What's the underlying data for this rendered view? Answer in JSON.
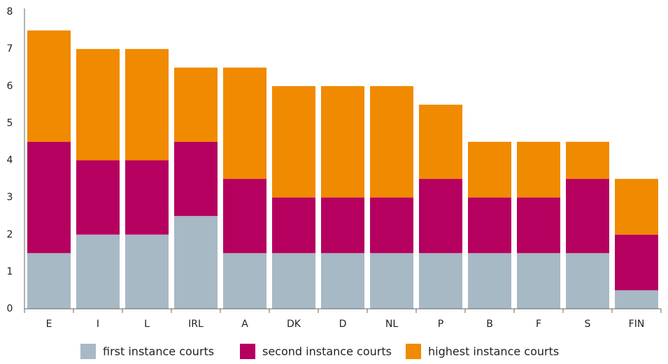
{
  "chart_data": {
    "type": "stacked_bar",
    "categories": [
      "E",
      "I",
      "L",
      "IRL",
      "A",
      "DK",
      "D",
      "NL",
      "P",
      "B",
      "F",
      "S",
      "FIN"
    ],
    "series": [
      {
        "name": "first instance courts",
        "color": "#a7b9c4",
        "values": [
          1.5,
          2,
          2,
          2.5,
          1.5,
          1.5,
          1.5,
          1.5,
          1.5,
          1.5,
          1.5,
          1.5,
          0.5
        ]
      },
      {
        "name": "second instance courts",
        "color": "#b5005f",
        "values": [
          3,
          2,
          2,
          2,
          2,
          1.5,
          1.5,
          1.5,
          2,
          1.5,
          1.5,
          2,
          1.5
        ]
      },
      {
        "name": "highest instance courts",
        "color": "#f08a00",
        "values": [
          3,
          3,
          3,
          2,
          3,
          3,
          3,
          3,
          2,
          1.5,
          1.5,
          1,
          1.5
        ]
      }
    ],
    "ylim": [
      0,
      8
    ],
    "yticks": [
      0,
      1,
      2,
      3,
      4,
      5,
      6,
      7,
      8
    ],
    "grid": false,
    "legend": "bottom"
  }
}
